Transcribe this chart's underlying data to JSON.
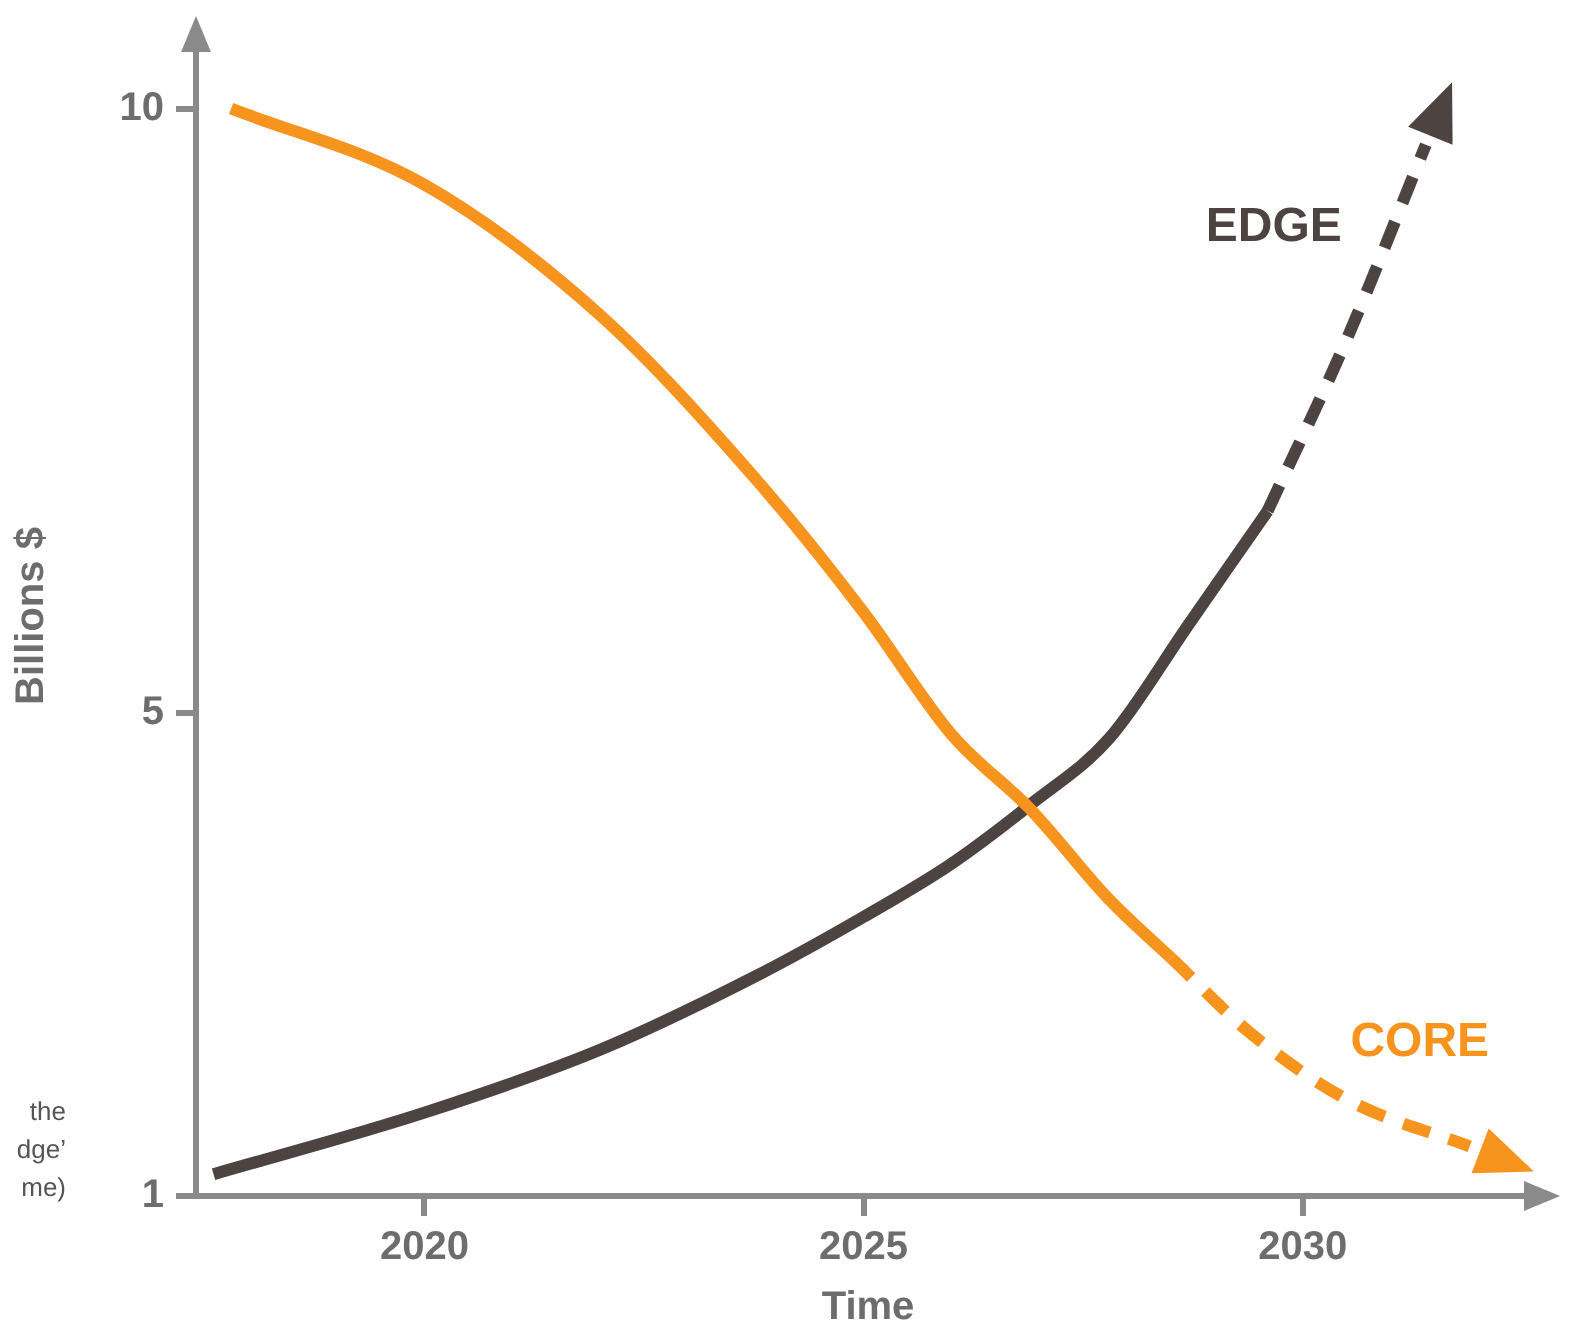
{
  "chart_data": {
    "type": "line",
    "xlabel": "Time",
    "ylabel": "Billions $",
    "xlim": [
      2017.4,
      2032.7
    ],
    "xticks": [
      2020,
      2025,
      2030
    ],
    "ylim": [
      1,
      10.6
    ],
    "yticks": [
      1,
      5,
      10
    ],
    "grid": false,
    "legend": false,
    "marker": "none",
    "annotations": [
      "the",
      "dge’",
      "me)"
    ],
    "series": [
      {
        "name": "CORE",
        "color": "#f7941d",
        "line_style": "solid",
        "x": [
          2017.8,
          2020,
          2022,
          2023.8,
          2025,
          2026,
          2026.9,
          2027.8,
          2028.5
        ],
        "values": [
          10,
          9.37,
          8.29,
          6.91,
          5.83,
          4.82,
          4.2,
          3.45,
          2.97
        ]
      },
      {
        "color": "#f7941d",
        "line_style": "dashed",
        "x": [
          2028.5,
          2029.4,
          2030.5,
          2031.9
        ],
        "values": [
          2.97,
          2.35,
          1.8,
          1.41
        ]
      },
      {
        "name": "EDGE",
        "color": "#4d4340",
        "line_style": "solid",
        "x": [
          2017.6,
          2020,
          2022,
          2023.8,
          2025,
          2026,
          2026.9,
          2027.8,
          2028.7,
          2029.6
        ],
        "values": [
          1.18,
          1.69,
          2.21,
          2.83,
          3.31,
          3.75,
          4.24,
          4.79,
          5.73,
          6.67
        ]
      },
      {
        "color": "#4d4340",
        "line_style": "dashed",
        "x": [
          2029.6,
          2030.5,
          2031.4
        ],
        "values": [
          6.67,
          8.09,
          9.7
        ]
      }
    ]
  }
}
